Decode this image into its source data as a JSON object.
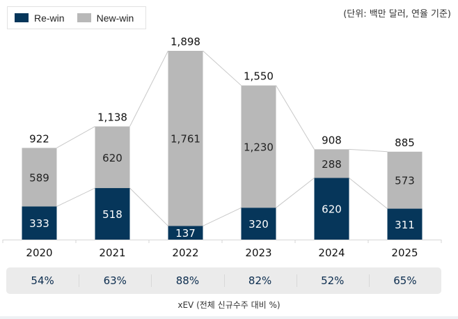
{
  "legend": {
    "items": [
      {
        "label": "Re-win",
        "color": "#06365a"
      },
      {
        "label": "New-win",
        "color": "#b8b8b8"
      }
    ]
  },
  "unit_note": "(단위: 백만 달러, 연율 기준)",
  "xev_share": {
    "values": [
      "54%",
      "63%",
      "88%",
      "82%",
      "52%",
      "65%"
    ],
    "caption": "xEV (전체 신규수주 대비 %)"
  },
  "chart_data": {
    "type": "bar",
    "stacked": true,
    "title": "",
    "xlabel": "",
    "ylabel": "",
    "unit": "백만 달러 (연율 기준)",
    "categories": [
      "2020",
      "2021",
      "2022",
      "2023",
      "2024",
      "2025"
    ],
    "series": [
      {
        "name": "Re-win",
        "color": "#06365a",
        "values": [
          333,
          518,
          137,
          320,
          620,
          311
        ],
        "labels": [
          "333",
          "518",
          "137",
          "320",
          "620",
          "311"
        ]
      },
      {
        "name": "New-win",
        "color": "#b8b8b8",
        "values": [
          589,
          620,
          1761,
          1230,
          288,
          573
        ],
        "labels": [
          "589",
          "620",
          "1,761",
          "1,230",
          "288",
          "573"
        ]
      }
    ],
    "totals": [
      922,
      1138,
      1898,
      1550,
      908,
      885
    ],
    "total_labels": [
      "922",
      "1,138",
      "1,898",
      "1,550",
      "908",
      "885"
    ],
    "ylim": [
      0,
      1898
    ],
    "grid": false,
    "legend_position": "top-left",
    "connector_lines": true
  }
}
